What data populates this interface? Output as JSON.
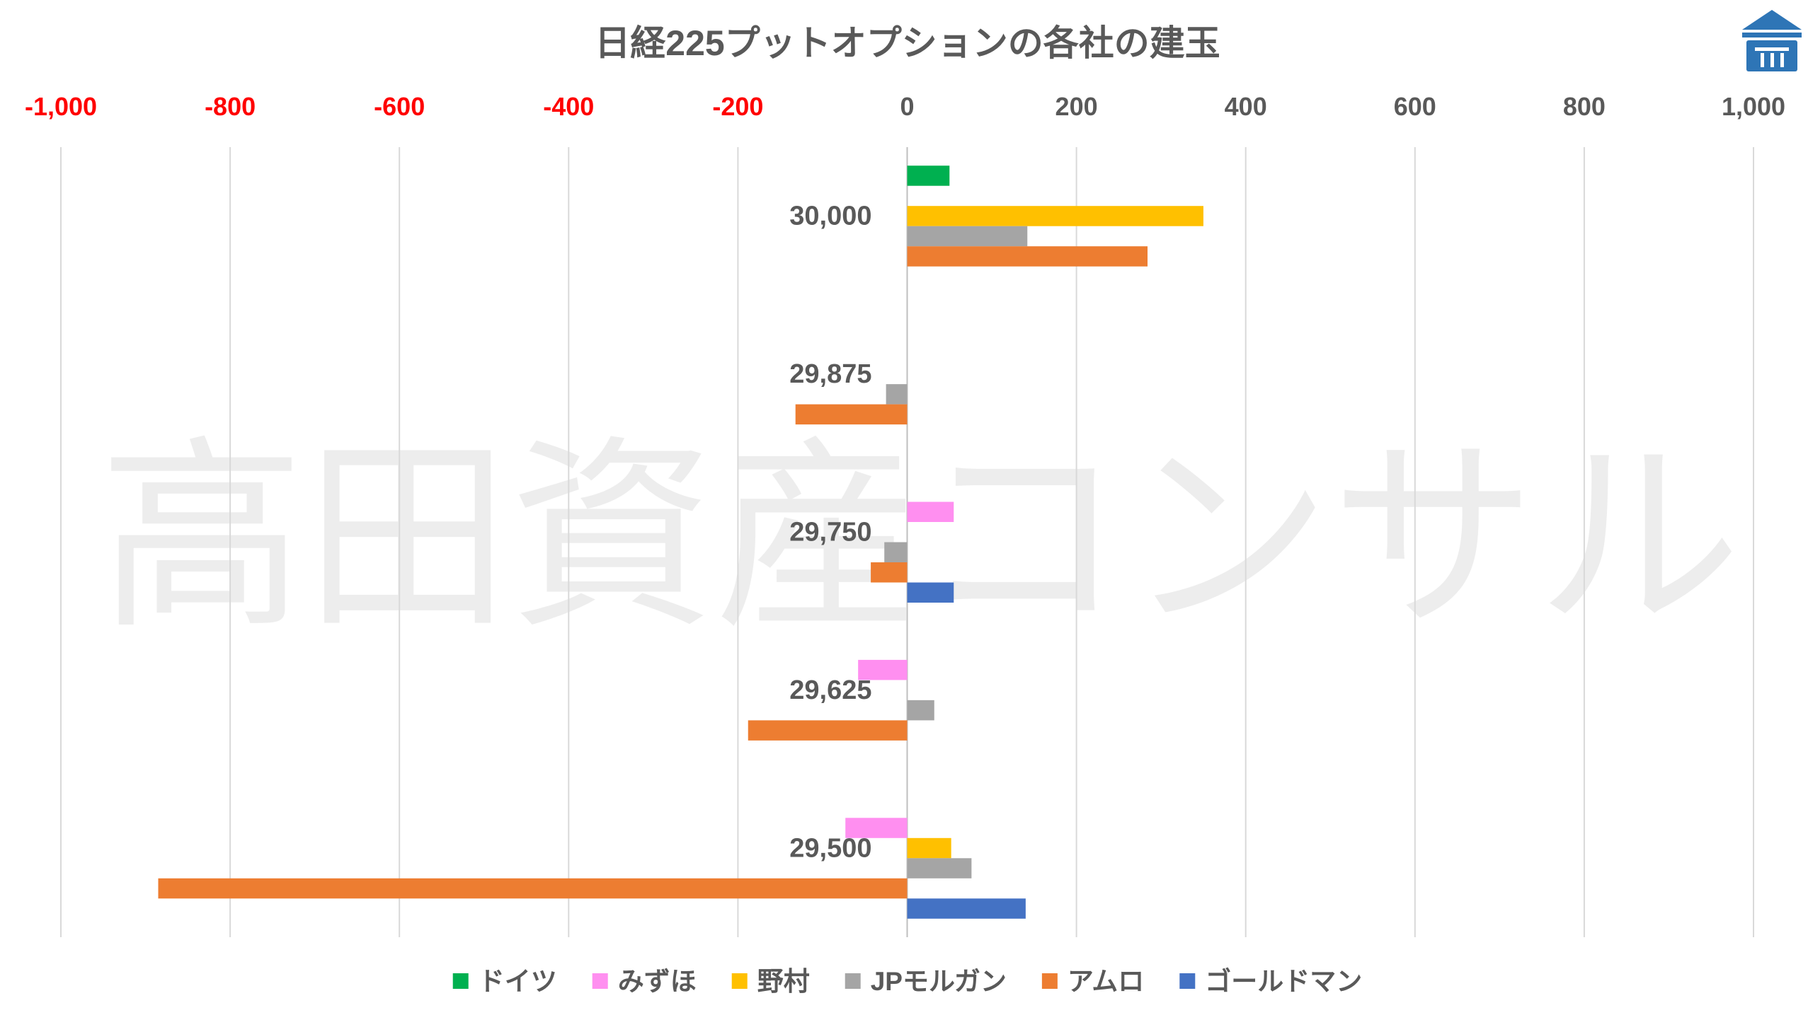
{
  "chart_data": {
    "type": "bar",
    "orientation": "horizontal",
    "title": "日経225プットオプションの各社の建玉",
    "xlim": [
      -1000,
      1000
    ],
    "x_ticks": [
      -1000,
      -800,
      -600,
      -400,
      -200,
      0,
      200,
      400,
      600,
      800,
      1000
    ],
    "x_tick_labels": [
      "-1,000",
      "-800",
      "-600",
      "-400",
      "-200",
      "0",
      "200",
      "400",
      "600",
      "800",
      "1,000"
    ],
    "negative_tick_color": "#FF0000",
    "positive_tick_color": "#595959",
    "grid": "vertical",
    "legend_position": "bottom",
    "categories": [
      "30,000",
      "29,875",
      "29,750",
      "29,625",
      "29,500"
    ],
    "series": [
      {
        "name": "ドイツ",
        "color": "#00B050",
        "values": [
          50,
          0,
          0,
          0,
          0
        ]
      },
      {
        "name": "みずほ",
        "color": "#FF8FF0",
        "values": [
          0,
          0,
          55,
          -58,
          -73
        ]
      },
      {
        "name": "野村",
        "color": "#FFC000",
        "values": [
          350,
          0,
          0,
          0,
          52
        ]
      },
      {
        "name": "JPモルガン",
        "color": "#A5A5A5",
        "values": [
          142,
          -25,
          -27,
          32,
          76
        ]
      },
      {
        "name": "アムロ",
        "color": "#ED7D31",
        "values": [
          284,
          -132,
          -43,
          -188,
          -885
        ]
      },
      {
        "name": "ゴールドマン",
        "color": "#4472C4",
        "values": [
          0,
          0,
          55,
          0,
          140
        ]
      }
    ]
  },
  "watermark": "高田資産コンサル",
  "logo": {
    "icon": "building-logo-icon",
    "color": "#2E75B6"
  }
}
